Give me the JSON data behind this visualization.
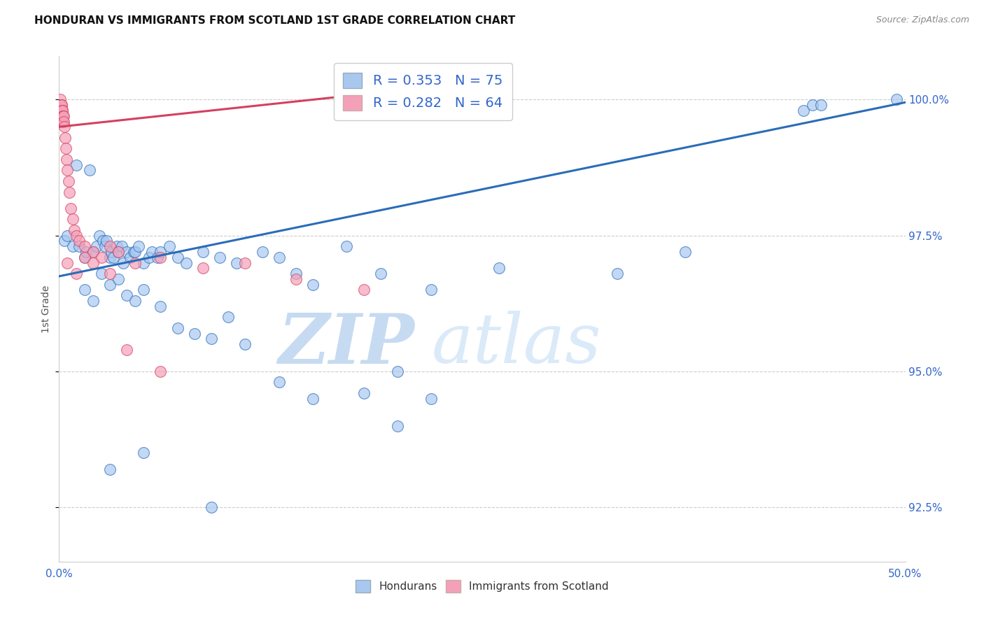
{
  "title": "HONDURAN VS IMMIGRANTS FROM SCOTLAND 1ST GRADE CORRELATION CHART",
  "source": "Source: ZipAtlas.com",
  "ylabel": "1st Grade",
  "legend_label1": "Hondurans",
  "legend_label2": "Immigrants from Scotland",
  "R1": 0.353,
  "N1": 75,
  "R2": 0.282,
  "N2": 64,
  "color1": "#A8C8F0",
  "color2": "#F4A0B8",
  "trendline1_color": "#2B6CB8",
  "trendline2_color": "#D44060",
  "xmin": 0.0,
  "xmax": 50.0,
  "ymin": 91.5,
  "ymax": 100.8,
  "yticks": [
    92.5,
    95.0,
    97.5,
    100.0
  ],
  "xticks": [
    0.0,
    12.5,
    25.0,
    37.5,
    50.0
  ],
  "xtick_labels": [
    "0.0%",
    "",
    "",
    "",
    "50.0%"
  ],
  "ytick_labels": [
    "92.5%",
    "95.0%",
    "97.5%",
    "100.0%"
  ],
  "blue_x": [
    0.3,
    0.5,
    0.8,
    1.0,
    1.2,
    1.5,
    1.6,
    1.8,
    2.0,
    2.2,
    2.4,
    2.6,
    2.7,
    2.8,
    3.0,
    3.1,
    3.2,
    3.4,
    3.5,
    3.7,
    3.8,
    4.0,
    4.2,
    4.4,
    4.5,
    4.7,
    5.0,
    5.3,
    5.5,
    5.8,
    6.0,
    6.5,
    7.0,
    7.5,
    8.5,
    9.5,
    10.5,
    12.0,
    13.0,
    14.0,
    15.0,
    17.0,
    19.0,
    22.0,
    26.0,
    33.0,
    37.0,
    44.0,
    44.5,
    45.0,
    49.5
  ],
  "blue_y": [
    97.4,
    97.5,
    97.3,
    98.8,
    97.3,
    97.1,
    97.2,
    98.7,
    97.2,
    97.3,
    97.5,
    97.4,
    97.3,
    97.4,
    97.1,
    97.2,
    97.1,
    97.3,
    97.2,
    97.3,
    97.0,
    97.2,
    97.1,
    97.2,
    97.2,
    97.3,
    97.0,
    97.1,
    97.2,
    97.1,
    97.2,
    97.3,
    97.1,
    97.0,
    97.2,
    97.1,
    97.0,
    97.2,
    97.1,
    96.8,
    96.6,
    97.3,
    96.8,
    96.5,
    96.9,
    96.8,
    97.2,
    99.8,
    99.9,
    99.9,
    100.0
  ],
  "blue_x2": [
    1.5,
    2.0,
    2.5,
    3.0,
    3.5,
    4.0,
    4.5,
    5.0,
    6.0,
    7.0,
    8.0,
    9.0,
    10.0,
    11.0,
    13.0,
    15.0,
    18.0,
    20.0
  ],
  "blue_y2": [
    96.5,
    96.3,
    96.8,
    96.6,
    96.7,
    96.4,
    96.3,
    96.5,
    96.2,
    95.8,
    95.7,
    95.6,
    96.0,
    95.5,
    94.8,
    94.5,
    94.6,
    95.0
  ],
  "blue_x3": [
    3.0,
    5.0,
    9.0,
    20.0,
    22.0
  ],
  "blue_y3": [
    93.2,
    93.5,
    92.5,
    94.0,
    94.5
  ],
  "pink_x": [
    0.05,
    0.07,
    0.08,
    0.09,
    0.1,
    0.11,
    0.12,
    0.13,
    0.14,
    0.15,
    0.16,
    0.17,
    0.18,
    0.19,
    0.2,
    0.21,
    0.22,
    0.23,
    0.24,
    0.25,
    0.26,
    0.28,
    0.3,
    0.35,
    0.4,
    0.45,
    0.5,
    0.55,
    0.6,
    0.7,
    0.8,
    0.9,
    1.0,
    1.2,
    1.5,
    2.0,
    2.5,
    3.0,
    3.5,
    4.5,
    6.0,
    8.5,
    11.0,
    14.0,
    18.0
  ],
  "pink_y": [
    99.9,
    99.9,
    100.0,
    99.9,
    99.8,
    99.9,
    99.9,
    99.8,
    99.9,
    99.8,
    99.8,
    99.9,
    99.7,
    99.8,
    99.8,
    99.8,
    99.7,
    99.6,
    99.7,
    99.7,
    99.7,
    99.6,
    99.5,
    99.3,
    99.1,
    98.9,
    98.7,
    98.5,
    98.3,
    98.0,
    97.8,
    97.6,
    97.5,
    97.4,
    97.3,
    97.2,
    97.1,
    97.3,
    97.2,
    97.0,
    97.1,
    96.9,
    97.0,
    96.7,
    96.5
  ],
  "pink_x2": [
    0.5,
    1.0,
    1.5,
    2.0,
    3.0,
    4.0,
    6.0
  ],
  "pink_y2": [
    97.0,
    96.8,
    97.1,
    97.0,
    96.8,
    95.4,
    95.0
  ],
  "trendline_blue_x0": 0.0,
  "trendline_blue_y0": 96.75,
  "trendline_blue_x1": 50.0,
  "trendline_blue_y1": 99.95,
  "trendline_pink_x0": 0.0,
  "trendline_pink_y0": 99.5,
  "trendline_pink_x1": 18.0,
  "trendline_pink_y1": 100.1,
  "watermark_zip": "ZIP",
  "watermark_atlas": "atlas",
  "watermark_color": "#D0E4F8",
  "background_color": "#FFFFFF",
  "grid_color": "#CCCCCC",
  "tick_color": "#3366CC",
  "label_color": "#555555"
}
